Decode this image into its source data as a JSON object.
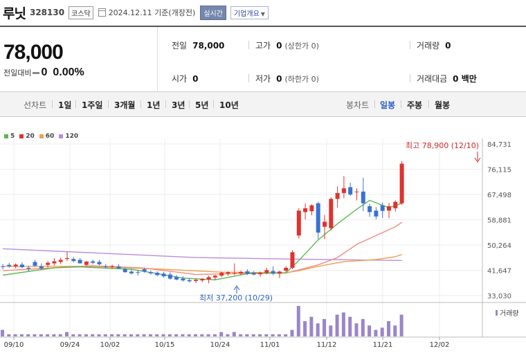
{
  "header": {
    "name": "루닛",
    "code": "328130",
    "market": "코스닥",
    "date": "2024.12.11 기준(개장전)",
    "realtime_label": "실시간",
    "company_label": "기업개요"
  },
  "quote": {
    "price": "78,000",
    "change_label": "전일대비",
    "change": "0",
    "change_pct": "0.00%",
    "prev_close_label": "전일",
    "prev_close": "78,000",
    "high_label": "고가",
    "high": "0",
    "high_sub": "(상한가 0)",
    "volume_label": "거래량",
    "volume": "0",
    "open_label": "시가",
    "open": "0",
    "low_label": "저가",
    "low": "0",
    "low_sub": "(하한가 0)",
    "amount_label": "거래대금",
    "amount": "0 백만"
  },
  "tabs": {
    "line_label": "선차트",
    "periods": [
      "1일",
      "1주일",
      "3개월",
      "1년",
      "3년",
      "5년",
      "10년"
    ],
    "candle_label": "봉차트",
    "candles": [
      "일봉",
      "주봉",
      "월봉"
    ],
    "active_candle": "일봉"
  },
  "colors": {
    "up": "#e0322e",
    "down": "#3a72d1",
    "ma5": "#5cb84f",
    "ma20": "#f08c7b",
    "ma60": "#f0a050",
    "ma120": "#b98be0",
    "volume": "#9b86c9"
  },
  "chart_data": {
    "type": "candlestick",
    "legend": [
      "5",
      "20",
      "60",
      "120"
    ],
    "y_ticks": [
      "84,731",
      "76,115",
      "67,498",
      "58,881",
      "50,264",
      "41,647",
      "33,030"
    ],
    "ylim": [
      33030,
      84731
    ],
    "x_labels": [
      "09/10",
      "09/24",
      "10/02",
      "10/15",
      "10/24",
      "11/01",
      "11/12",
      "11/21",
      "12/02"
    ],
    "volume_label": "거래량",
    "high_annotation": "최고 78,900 (12/10)",
    "low_annotation": "최저 37,200 (10/29)",
    "candles": [
      {
        "o": 43000,
        "h": 43800,
        "l": 42000,
        "c": 42800
      },
      {
        "o": 43500,
        "h": 44200,
        "l": 42600,
        "c": 43000
      },
      {
        "o": 43000,
        "h": 44000,
        "l": 42300,
        "c": 43600
      },
      {
        "o": 43600,
        "h": 44400,
        "l": 42400,
        "c": 42700
      },
      {
        "o": 42500,
        "h": 43200,
        "l": 41300,
        "c": 42200
      },
      {
        "o": 44500,
        "h": 45200,
        "l": 43000,
        "c": 43200
      },
      {
        "o": 43000,
        "h": 44000,
        "l": 41800,
        "c": 42300
      },
      {
        "o": 43500,
        "h": 44800,
        "l": 42600,
        "c": 44200
      },
      {
        "o": 44000,
        "h": 45800,
        "l": 43300,
        "c": 44700
      },
      {
        "o": 44500,
        "h": 46000,
        "l": 43800,
        "c": 45200
      },
      {
        "o": 45500,
        "h": 48000,
        "l": 44800,
        "c": 45800
      },
      {
        "o": 45500,
        "h": 46200,
        "l": 44300,
        "c": 44800
      },
      {
        "o": 45200,
        "h": 45800,
        "l": 44000,
        "c": 44000
      },
      {
        "o": 43500,
        "h": 44800,
        "l": 43000,
        "c": 44600
      },
      {
        "o": 44700,
        "h": 45300,
        "l": 43700,
        "c": 44200
      },
      {
        "o": 44500,
        "h": 45200,
        "l": 43400,
        "c": 43700
      },
      {
        "o": 43000,
        "h": 43800,
        "l": 42200,
        "c": 42800
      },
      {
        "o": 42800,
        "h": 43600,
        "l": 42100,
        "c": 43100
      },
      {
        "o": 43000,
        "h": 43800,
        "l": 42100,
        "c": 42300
      },
      {
        "o": 42000,
        "h": 42600,
        "l": 40800,
        "c": 41000
      },
      {
        "o": 41200,
        "h": 41800,
        "l": 40200,
        "c": 40600
      },
      {
        "o": 41000,
        "h": 41800,
        "l": 39800,
        "c": 40900
      },
      {
        "o": 42000,
        "h": 42500,
        "l": 40800,
        "c": 41200
      },
      {
        "o": 41000,
        "h": 41600,
        "l": 40200,
        "c": 40600
      },
      {
        "o": 40800,
        "h": 41300,
        "l": 39600,
        "c": 40000
      },
      {
        "o": 40500,
        "h": 41100,
        "l": 39200,
        "c": 39600
      },
      {
        "o": 40200,
        "h": 41000,
        "l": 38400,
        "c": 38800
      },
      {
        "o": 39400,
        "h": 40000,
        "l": 38200,
        "c": 38500
      },
      {
        "o": 38800,
        "h": 39600,
        "l": 37800,
        "c": 38200
      },
      {
        "o": 38300,
        "h": 39000,
        "l": 37500,
        "c": 37900
      },
      {
        "o": 38000,
        "h": 38900,
        "l": 37300,
        "c": 38400
      },
      {
        "o": 38200,
        "h": 39000,
        "l": 37600,
        "c": 38700
      },
      {
        "o": 38500,
        "h": 39800,
        "l": 37200,
        "c": 39300
      },
      {
        "o": 39200,
        "h": 40100,
        "l": 38300,
        "c": 39800
      },
      {
        "o": 39800,
        "h": 41200,
        "l": 39300,
        "c": 40800
      },
      {
        "o": 40500,
        "h": 41300,
        "l": 39800,
        "c": 41000
      },
      {
        "o": 40600,
        "h": 44000,
        "l": 40000,
        "c": 40700
      },
      {
        "o": 40600,
        "h": 41500,
        "l": 40000,
        "c": 41100
      },
      {
        "o": 41300,
        "h": 42000,
        "l": 40000,
        "c": 40400
      },
      {
        "o": 40800,
        "h": 41400,
        "l": 39900,
        "c": 40200
      },
      {
        "o": 40300,
        "h": 41200,
        "l": 39500,
        "c": 40800
      },
      {
        "o": 40800,
        "h": 42500,
        "l": 40300,
        "c": 41700
      },
      {
        "o": 41400,
        "h": 43000,
        "l": 40000,
        "c": 40500
      },
      {
        "o": 40500,
        "h": 41500,
        "l": 39000,
        "c": 41200
      },
      {
        "o": 41500,
        "h": 43000,
        "l": 41000,
        "c": 42500
      },
      {
        "o": 42500,
        "h": 48500,
        "l": 42000,
        "c": 47800
      },
      {
        "o": 53500,
        "h": 62800,
        "l": 52500,
        "c": 62000
      },
      {
        "o": 61500,
        "h": 64500,
        "l": 59000,
        "c": 62800
      },
      {
        "o": 61800,
        "h": 64200,
        "l": 60400,
        "c": 63800
      },
      {
        "o": 64500,
        "h": 65000,
        "l": 52300,
        "c": 54500
      },
      {
        "o": 56500,
        "h": 60500,
        "l": 52300,
        "c": 58200
      },
      {
        "o": 56000,
        "h": 66500,
        "l": 55200,
        "c": 66000
      },
      {
        "o": 66000,
        "h": 70200,
        "l": 63000,
        "c": 68000
      },
      {
        "o": 68000,
        "h": 73800,
        "l": 66200,
        "c": 69600
      },
      {
        "o": 70000,
        "h": 71500,
        "l": 67000,
        "c": 67500
      },
      {
        "o": 68500,
        "h": 69600,
        "l": 65500,
        "c": 68500
      },
      {
        "o": 68500,
        "h": 73200,
        "l": 61800,
        "c": 64500
      },
      {
        "o": 63500,
        "h": 64400,
        "l": 59900,
        "c": 61500
      },
      {
        "o": 62000,
        "h": 63200,
        "l": 59000,
        "c": 60000
      },
      {
        "o": 63800,
        "h": 64800,
        "l": 59500,
        "c": 61900
      },
      {
        "o": 62000,
        "h": 64600,
        "l": 59400,
        "c": 63500
      },
      {
        "o": 62800,
        "h": 65500,
        "l": 61700,
        "c": 65000
      },
      {
        "o": 64500,
        "h": 78900,
        "l": 64000,
        "c": 78000
      }
    ],
    "ma5_points": [
      [
        0,
        40000
      ],
      [
        8,
        42500
      ],
      [
        12,
        42800
      ],
      [
        20,
        42000
      ],
      [
        28,
        39000
      ],
      [
        33,
        38400
      ],
      [
        38,
        40500
      ],
      [
        44,
        40800
      ],
      [
        46,
        45000
      ],
      [
        49,
        52000
      ],
      [
        52,
        57500
      ],
      [
        55,
        62500
      ],
      [
        57,
        65500
      ],
      [
        60,
        63000
      ],
      [
        62,
        64500
      ]
    ],
    "ma20_points": [
      [
        0,
        41500
      ],
      [
        14,
        43200
      ],
      [
        22,
        42400
      ],
      [
        30,
        40200
      ],
      [
        38,
        40600
      ],
      [
        44,
        40700
      ],
      [
        46,
        41800
      ],
      [
        49,
        43500
      ],
      [
        52,
        46000
      ],
      [
        55,
        50500
      ],
      [
        58,
        53500
      ],
      [
        61,
        56500
      ],
      [
        62,
        58000
      ]
    ],
    "ma60_points": [
      [
        0,
        43000
      ],
      [
        14,
        43000
      ],
      [
        25,
        42000
      ],
      [
        34,
        41000
      ],
      [
        44,
        40800
      ],
      [
        46,
        41500
      ],
      [
        49,
        43000
      ],
      [
        53,
        44600
      ],
      [
        58,
        45300
      ],
      [
        61,
        46300
      ],
      [
        62,
        47000
      ]
    ],
    "ma120_points": [
      [
        0,
        49000
      ],
      [
        15,
        47500
      ],
      [
        30,
        46000
      ],
      [
        44,
        45500
      ],
      [
        62,
        45000
      ]
    ],
    "volumes": [
      3,
      1,
      1,
      1,
      1,
      1,
      1,
      1,
      1,
      1,
      2,
      1,
      1,
      1,
      1,
      1,
      1,
      1,
      1,
      1,
      1,
      1,
      1,
      1,
      1,
      1,
      1,
      1,
      1,
      1,
      1,
      1,
      1,
      1,
      2,
      1,
      2,
      1,
      1,
      1,
      1,
      1,
      1,
      1,
      1,
      3,
      14,
      7,
      9,
      6,
      8,
      5,
      10,
      11,
      9,
      6,
      8,
      5,
      3,
      4,
      7,
      5,
      10
    ]
  }
}
